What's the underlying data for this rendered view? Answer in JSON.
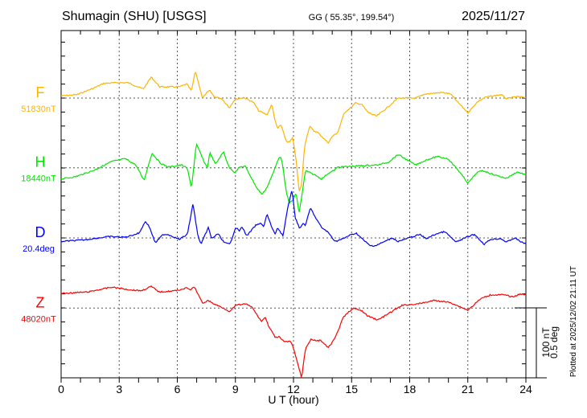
{
  "header": {
    "station": "Shumagin (SHU)  [USGS]",
    "coords": "GG ( 55.35°, 199.54°)",
    "date": "2025/11/27"
  },
  "footer": {
    "plotted": "Plotted at 2025/12/02 21:11 UT",
    "scale_nT": "100 nT",
    "scale_deg": "0.5 deg"
  },
  "colors": {
    "F": "#FFB400",
    "H": "#00E600",
    "D": "#0000FF",
    "Z": "#FF0000",
    "axis": "#000000",
    "grid": "#555555"
  },
  "chart_data": {
    "type": "line",
    "title": "Shumagin (SHU)  [USGS]",
    "xlabel": "U T (hour)",
    "ylabel": "",
    "xlim": [
      0,
      24
    ],
    "xticks": [
      "0",
      "3",
      "6",
      "9",
      "12",
      "15",
      "18",
      "21",
      "24"
    ],
    "grid": true,
    "scale": {
      "nT_per_division": 20,
      "bar_nT": 100,
      "bar_deg": 0.5
    },
    "series": [
      {
        "name": "F",
        "baseline_label": "51830nT",
        "unit": "nT",
        "points": [
          [
            0,
            3
          ],
          [
            0.83,
            5
          ],
          [
            1.66,
            14
          ],
          [
            2.2,
            21
          ],
          [
            2.9,
            22
          ],
          [
            3.45,
            22
          ],
          [
            4.24,
            13
          ],
          [
            4.65,
            30
          ],
          [
            5.1,
            16
          ],
          [
            6.1,
            16
          ],
          [
            6.5,
            20
          ],
          [
            6.73,
            10
          ],
          [
            6.93,
            39
          ],
          [
            7.14,
            17
          ],
          [
            7.3,
            0
          ],
          [
            7.47,
            6
          ],
          [
            7.68,
            11
          ],
          [
            7.9,
            2
          ],
          [
            8.3,
            -1
          ],
          [
            8.55,
            -9
          ],
          [
            8.68,
            -14
          ],
          [
            8.97,
            -2
          ],
          [
            9.43,
            1
          ],
          [
            9.93,
            -6
          ],
          [
            10.2,
            -18
          ],
          [
            10.63,
            -24
          ],
          [
            10.88,
            -9
          ],
          [
            11.05,
            -32
          ],
          [
            11.17,
            -44
          ],
          [
            11.34,
            -38
          ],
          [
            11.63,
            -62
          ],
          [
            11.79,
            -63
          ],
          [
            11.96,
            -57
          ],
          [
            12.13,
            -87
          ],
          [
            12.29,
            -134
          ],
          [
            12.42,
            -124
          ],
          [
            12.58,
            -67
          ],
          [
            12.83,
            -40
          ],
          [
            13.04,
            -47
          ],
          [
            13.25,
            -49
          ],
          [
            13.54,
            -57
          ],
          [
            13.79,
            -64
          ],
          [
            14.0,
            -55
          ],
          [
            14.29,
            -49
          ],
          [
            14.62,
            -21
          ],
          [
            14.99,
            -13
          ],
          [
            15.2,
            -7
          ],
          [
            15.53,
            -9
          ],
          [
            15.82,
            -20
          ],
          [
            16.28,
            -26
          ],
          [
            16.78,
            -15
          ],
          [
            17.4,
            0
          ],
          [
            18.31,
            0
          ],
          [
            18.85,
            6
          ],
          [
            19.68,
            8
          ],
          [
            20.1,
            6
          ],
          [
            20.52,
            -7
          ],
          [
            21.01,
            -21
          ],
          [
            21.47,
            -6
          ],
          [
            21.88,
            1
          ],
          [
            22.72,
            5
          ],
          [
            23.0,
            -1
          ],
          [
            23.5,
            2
          ],
          [
            24,
            1
          ]
        ]
      },
      {
        "name": "H",
        "baseline_label": "18440nT",
        "unit": "nT",
        "points": [
          [
            0,
            -16
          ],
          [
            0.71,
            -13
          ],
          [
            1.66,
            -4
          ],
          [
            2.62,
            9
          ],
          [
            3.32,
            13
          ],
          [
            3.86,
            4
          ],
          [
            4.28,
            -18
          ],
          [
            4.69,
            21
          ],
          [
            5.11,
            7
          ],
          [
            5.52,
            1
          ],
          [
            6.23,
            4
          ],
          [
            6.52,
            -1
          ],
          [
            6.73,
            -29
          ],
          [
            6.98,
            34
          ],
          [
            7.18,
            22
          ],
          [
            7.35,
            10
          ],
          [
            7.56,
            0
          ],
          [
            7.68,
            22
          ],
          [
            7.97,
            5
          ],
          [
            8.39,
            23
          ],
          [
            8.68,
            0
          ],
          [
            8.76,
            -1
          ],
          [
            8.97,
            -7
          ],
          [
            9.22,
            1
          ],
          [
            9.51,
            2
          ],
          [
            9.8,
            -13
          ],
          [
            10.13,
            -30
          ],
          [
            10.38,
            -38
          ],
          [
            10.63,
            -28
          ],
          [
            10.96,
            -7
          ],
          [
            11.17,
            10
          ],
          [
            11.34,
            17
          ],
          [
            11.46,
            -1
          ],
          [
            11.63,
            -36
          ],
          [
            11.79,
            -50
          ],
          [
            11.96,
            -47
          ],
          [
            12.13,
            -36
          ],
          [
            12.29,
            -65
          ],
          [
            12.42,
            -42
          ],
          [
            12.62,
            -4
          ],
          [
            12.83,
            -7
          ],
          [
            13.16,
            -11
          ],
          [
            13.45,
            -16
          ],
          [
            13.79,
            -8
          ],
          [
            14.08,
            -4
          ],
          [
            14.29,
            1
          ],
          [
            14.99,
            2
          ],
          [
            15.53,
            3
          ],
          [
            16.36,
            4
          ],
          [
            16.9,
            8
          ],
          [
            17.4,
            19
          ],
          [
            17.94,
            10
          ],
          [
            18.31,
            4
          ],
          [
            18.85,
            11
          ],
          [
            19.39,
            16
          ],
          [
            19.98,
            13
          ],
          [
            20.52,
            -4
          ],
          [
            21.01,
            -22
          ],
          [
            21.47,
            -7
          ],
          [
            21.76,
            -4
          ],
          [
            22.47,
            -11
          ],
          [
            23.0,
            -15
          ],
          [
            23.54,
            -6
          ],
          [
            24,
            -10
          ]
        ]
      },
      {
        "name": "D",
        "baseline_label": "20.4deg",
        "unit": "deg",
        "points": [
          [
            0,
            -0.025
          ],
          [
            1.12,
            -0.015
          ],
          [
            2.49,
            0.01
          ],
          [
            3.32,
            0.005
          ],
          [
            4.03,
            0.035
          ],
          [
            4.36,
            0.12
          ],
          [
            4.57,
            0.075
          ],
          [
            4.86,
            -0.035
          ],
          [
            5.27,
            0.025
          ],
          [
            5.52,
            0.025
          ],
          [
            6.1,
            -0.01
          ],
          [
            6.52,
            0.025
          ],
          [
            6.81,
            0.245
          ],
          [
            7.06,
            0.015
          ],
          [
            7.23,
            -0.045
          ],
          [
            7.6,
            0.075
          ],
          [
            7.77,
            -0.005
          ],
          [
            8.1,
            0.03
          ],
          [
            8.43,
            -0.035
          ],
          [
            8.72,
            -0.045
          ],
          [
            9.01,
            0.075
          ],
          [
            9.22,
            0.05
          ],
          [
            9.34,
            0.08
          ],
          [
            9.59,
            0.015
          ],
          [
            10.05,
            0.09
          ],
          [
            10.34,
            0.105
          ],
          [
            10.46,
            0.08
          ],
          [
            10.63,
            0.17
          ],
          [
            10.84,
            0.09
          ],
          [
            11.05,
            0.025
          ],
          [
            11.17,
            0.075
          ],
          [
            11.46,
            0.015
          ],
          [
            11.67,
            0.19
          ],
          [
            11.92,
            0.35
          ],
          [
            12.08,
            0.15
          ],
          [
            12.33,
            0.065
          ],
          [
            12.5,
            0.105
          ],
          [
            12.62,
            0.09
          ],
          [
            12.87,
            0.215
          ],
          [
            13.16,
            0.14
          ],
          [
            13.45,
            0.075
          ],
          [
            13.75,
            0.045
          ],
          [
            14.16,
            -0.025
          ],
          [
            14.58,
            -0.005
          ],
          [
            14.83,
            0.015
          ],
          [
            15.24,
            0.035
          ],
          [
            15.53,
            -0.005
          ],
          [
            15.95,
            -0.055
          ],
          [
            16.24,
            -0.055
          ],
          [
            17.11,
            0
          ],
          [
            17.4,
            -0.025
          ],
          [
            18.52,
            0.025
          ],
          [
            18.85,
            -0.005
          ],
          [
            19.39,
            0.03
          ],
          [
            19.81,
            0.045
          ],
          [
            20.39,
            -0.03
          ],
          [
            21.01,
            0.01
          ],
          [
            21.35,
            0.025
          ],
          [
            21.84,
            -0.045
          ],
          [
            22.18,
            -0.01
          ],
          [
            22.72,
            -0.005
          ],
          [
            23.0,
            -0.03
          ],
          [
            23.42,
            0
          ],
          [
            23.84,
            -0.035
          ],
          [
            24,
            -0.04
          ]
        ]
      },
      {
        "name": "Z",
        "baseline_label": "48020nT",
        "unit": "nT",
        "points": [
          [
            0,
            21
          ],
          [
            1.37,
            23
          ],
          [
            2.62,
            30
          ],
          [
            3.61,
            26
          ],
          [
            4.15,
            25
          ],
          [
            4.65,
            31
          ],
          [
            5.07,
            23
          ],
          [
            5.94,
            25
          ],
          [
            6.52,
            29
          ],
          [
            6.65,
            26
          ],
          [
            6.89,
            30
          ],
          [
            7.3,
            7
          ],
          [
            7.6,
            11
          ],
          [
            7.89,
            6
          ],
          [
            8.39,
            0
          ],
          [
            8.72,
            -5
          ],
          [
            9.01,
            4
          ],
          [
            9.51,
            6
          ],
          [
            9.84,
            2
          ],
          [
            10.34,
            -19
          ],
          [
            10.55,
            -13
          ],
          [
            10.67,
            -23
          ],
          [
            11.05,
            -42
          ],
          [
            11.25,
            -41
          ],
          [
            11.5,
            -48
          ],
          [
            11.88,
            -48
          ],
          [
            12.08,
            -65
          ],
          [
            12.42,
            -100
          ],
          [
            12.62,
            -57
          ],
          [
            12.91,
            -44
          ],
          [
            13.16,
            -47
          ],
          [
            13.41,
            -46
          ],
          [
            13.79,
            -57
          ],
          [
            14.16,
            -42
          ],
          [
            14.58,
            -13
          ],
          [
            15.07,
            0
          ],
          [
            15.53,
            -4
          ],
          [
            15.82,
            -11
          ],
          [
            16.36,
            -17
          ],
          [
            16.9,
            -8
          ],
          [
            17.61,
            4
          ],
          [
            18.44,
            6
          ],
          [
            19.27,
            11
          ],
          [
            20.1,
            8
          ],
          [
            21.01,
            -3
          ],
          [
            21.64,
            13
          ],
          [
            22.18,
            19
          ],
          [
            22.88,
            19
          ],
          [
            23.3,
            16
          ],
          [
            23.71,
            20
          ],
          [
            24,
            20
          ]
        ]
      }
    ]
  }
}
